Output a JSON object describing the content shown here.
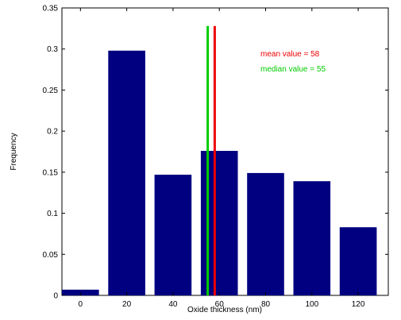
{
  "chart_data": {
    "type": "bar",
    "title": "",
    "xlabel": "Oxide thickness (nm)",
    "ylabel": "Frequency",
    "x_ticks": [
      "0",
      "20",
      "40",
      "60",
      "80",
      "100",
      "120"
    ],
    "y_ticks": [
      "0",
      "0.05",
      "0.1",
      "0.15",
      "0.2",
      "0.25",
      "0.3",
      "0.35"
    ],
    "xlim": [
      -8,
      133
    ],
    "ylim": [
      0,
      0.35
    ],
    "grid": false,
    "bars": [
      {
        "x": 0,
        "value": 0.007
      },
      {
        "x": 20,
        "value": 0.298
      },
      {
        "x": 40,
        "value": 0.147
      },
      {
        "x": 60,
        "value": 0.176
      },
      {
        "x": 80,
        "value": 0.149
      },
      {
        "x": 100,
        "value": 0.139
      },
      {
        "x": 120,
        "value": 0.083
      }
    ],
    "bar_width": 16,
    "bar_color": "#000080",
    "reference_lines": [
      {
        "label": "median value = 55",
        "x": 55,
        "color": "#00cc00"
      },
      {
        "label": "mean value = 58",
        "x": 58,
        "color": "#ee0000"
      }
    ],
    "reference_line_top": 0.328
  }
}
